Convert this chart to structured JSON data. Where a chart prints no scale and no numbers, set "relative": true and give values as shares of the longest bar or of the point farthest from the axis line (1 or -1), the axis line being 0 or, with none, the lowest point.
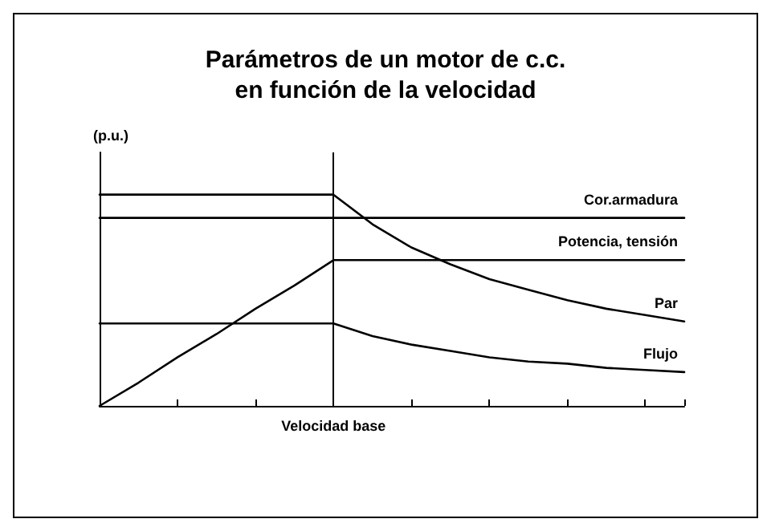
{
  "chart_data": {
    "type": "line",
    "title": "Parámetros de un motor de c.c.\nen función de la velocidad",
    "ylabel": "(p.u.)",
    "relative": true,
    "categories": [
      null,
      null,
      null,
      null,
      null,
      null,
      null,
      null,
      null,
      null,
      null,
      null,
      null,
      null,
      null,
      null
    ],
    "series": [
      {
        "name": "Cor.armadura",
        "color": "#000000",
        "values": [
          0.89,
          0.89,
          0.89,
          0.89,
          0.89,
          0.89,
          0.89,
          0.89,
          0.89,
          0.89,
          0.89,
          0.89,
          0.89,
          0.89,
          0.89,
          0.89
        ]
      },
      {
        "name": "Potencia, tensión",
        "color": "#000000",
        "values": [
          0,
          0.11,
          0.23,
          0.34,
          0.46,
          0.57,
          0.69,
          0.69,
          0.69,
          0.69,
          0.69,
          0.69,
          0.69,
          0.69,
          0.69,
          0.69
        ]
      },
      {
        "name": "Par",
        "color": "#000000",
        "values": [
          1,
          1,
          1,
          1,
          1,
          1,
          1,
          0.86,
          0.75,
          0.67,
          0.6,
          0.55,
          0.5,
          0.46,
          0.43,
          0.4
        ]
      },
      {
        "name": "Flujo",
        "color": "#000000",
        "values": [
          0.39,
          0.39,
          0.39,
          0.39,
          0.39,
          0.39,
          0.39,
          0.33,
          0.29,
          0.26,
          0.23,
          0.21,
          0.2,
          0.18,
          0.17,
          0.16
        ]
      }
    ],
    "annotations": [
      "Velocidad base"
    ],
    "grid": false,
    "legend": false,
    "marker": "none",
    "line_style": "solid"
  }
}
